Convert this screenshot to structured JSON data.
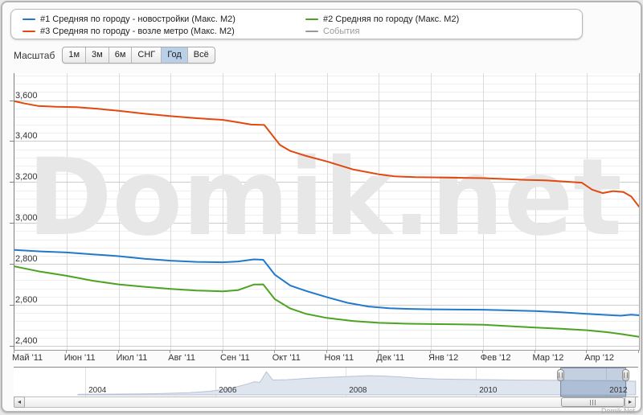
{
  "watermark": "Domik.net",
  "footer": {
    "brand": "Domik.Net"
  },
  "colors": {
    "series1": "#2079ca",
    "series2": "#4da321",
    "series3": "#e1490f",
    "events": "#999999",
    "selected_button_bg": "#b9d0e8",
    "grid_minor": "#efefef",
    "grid_major": "#cdcdcd",
    "grid_vertical": "#dbdbdb",
    "watermark_color": "#e7e7e7",
    "nav_area_fill": "#dfe5ef",
    "nav_area_line": "#b7c2d6",
    "nav_selection_fill": "rgba(77,112,160,0.33)",
    "nav_selection_border": "rgba(60,92,135,0.65)"
  },
  "legend": {
    "items": [
      {
        "id": "s1",
        "label": "#1 Средняя по городу - новостройки (Макс. М2)",
        "color": "#2079ca",
        "muted": false
      },
      {
        "id": "s2",
        "label": "#2 Средняя по городу (Макс. М2)",
        "color": "#4da321",
        "muted": false
      },
      {
        "id": "s3",
        "label": "#3 Средняя по городу - возле метро (Макс. М2)",
        "color": "#e1490f",
        "muted": false
      },
      {
        "id": "events",
        "label": "События",
        "color": "#999999",
        "muted": true
      }
    ]
  },
  "scale_toolbar": {
    "label": "Масштаб",
    "buttons": [
      {
        "label": "1м",
        "selected": false
      },
      {
        "label": "3м",
        "selected": false
      },
      {
        "label": "6м",
        "selected": false
      },
      {
        "label": "СНГ",
        "selected": false
      },
      {
        "label": "Год",
        "selected": true
      },
      {
        "label": "Всё",
        "selected": false
      }
    ]
  },
  "chart_data": {
    "type": "line",
    "title": "",
    "xlabel": "",
    "ylabel": "",
    "x_axis": {
      "unit": "month",
      "labels": [
        "Май '11",
        "Июн '11",
        "Июл '11",
        "Авг '11",
        "Сен '11",
        "Окт '11",
        "Ноя '11",
        "Дек '11",
        "Янв '12",
        "Фев '12",
        "Мар '12",
        "Апр '12"
      ]
    },
    "y_axis": {
      "min": 2380,
      "max": 3732,
      "minor_step": 40,
      "major_step": 200,
      "ticks": [
        {
          "value": 2400,
          "label": "2,400"
        },
        {
          "value": 2600,
          "label": "2,600"
        },
        {
          "value": 2800,
          "label": "2,800"
        },
        {
          "value": 3000,
          "label": "3,000"
        },
        {
          "value": 3200,
          "label": "3,200"
        },
        {
          "value": 3400,
          "label": "3,400"
        },
        {
          "value": 3600,
          "label": "3,600"
        }
      ]
    },
    "series": [
      {
        "name": "#1 Средняя по городу - новостройки (Макс. М2)",
        "color": "#2079ca",
        "points": [
          [
            0,
            2868
          ],
          [
            0.5,
            2861
          ],
          [
            1,
            2856
          ],
          [
            1.5,
            2847
          ],
          [
            2,
            2838
          ],
          [
            2.5,
            2825
          ],
          [
            3,
            2816
          ],
          [
            3.5,
            2810
          ],
          [
            4,
            2808
          ],
          [
            4.3,
            2812
          ],
          [
            4.6,
            2822
          ],
          [
            4.78,
            2820
          ],
          [
            5,
            2748
          ],
          [
            5.3,
            2694
          ],
          [
            5.6,
            2668
          ],
          [
            6,
            2638
          ],
          [
            6.4,
            2610
          ],
          [
            6.8,
            2592
          ],
          [
            7.2,
            2583
          ],
          [
            7.6,
            2580
          ],
          [
            8,
            2578
          ],
          [
            8.5,
            2577
          ],
          [
            9,
            2576
          ],
          [
            9.5,
            2573
          ],
          [
            10,
            2570
          ],
          [
            10.5,
            2564
          ],
          [
            11,
            2556
          ],
          [
            11.35,
            2551
          ],
          [
            11.65,
            2547
          ],
          [
            11.85,
            2552
          ],
          [
            12,
            2549
          ]
        ]
      },
      {
        "name": "#2 Средняя по городу (Макс. М2)",
        "color": "#4da321",
        "points": [
          [
            0,
            2788
          ],
          [
            0.5,
            2762
          ],
          [
            1,
            2742
          ],
          [
            1.5,
            2718
          ],
          [
            2,
            2700
          ],
          [
            2.5,
            2688
          ],
          [
            3,
            2678
          ],
          [
            3.5,
            2670
          ],
          [
            4,
            2666
          ],
          [
            4.3,
            2672
          ],
          [
            4.6,
            2699
          ],
          [
            4.78,
            2700
          ],
          [
            5,
            2628
          ],
          [
            5.3,
            2582
          ],
          [
            5.6,
            2556
          ],
          [
            6,
            2536
          ],
          [
            6.5,
            2521
          ],
          [
            7,
            2512
          ],
          [
            7.5,
            2508
          ],
          [
            8,
            2506
          ],
          [
            8.5,
            2505
          ],
          [
            9,
            2503
          ],
          [
            9.5,
            2496
          ],
          [
            10,
            2489
          ],
          [
            10.5,
            2483
          ],
          [
            11,
            2476
          ],
          [
            11.4,
            2466
          ],
          [
            11.7,
            2456
          ],
          [
            12,
            2444
          ]
        ]
      },
      {
        "name": "#3 Средняя по городу - возле метро (Макс. М2)",
        "color": "#e1490f",
        "points": [
          [
            0,
            3595
          ],
          [
            0.2,
            3584
          ],
          [
            0.45,
            3572
          ],
          [
            0.8,
            3568
          ],
          [
            1.2,
            3566
          ],
          [
            1.6,
            3558
          ],
          [
            2,
            3548
          ],
          [
            2.5,
            3534
          ],
          [
            3,
            3522
          ],
          [
            3.5,
            3512
          ],
          [
            4,
            3504
          ],
          [
            4.3,
            3492
          ],
          [
            4.55,
            3481
          ],
          [
            4.8,
            3479
          ],
          [
            4.95,
            3430
          ],
          [
            5.1,
            3382
          ],
          [
            5.3,
            3352
          ],
          [
            5.6,
            3328
          ],
          [
            6,
            3301
          ],
          [
            6.5,
            3262
          ],
          [
            7,
            3238
          ],
          [
            7.3,
            3228
          ],
          [
            7.7,
            3224
          ],
          [
            8,
            3223
          ],
          [
            8.5,
            3221
          ],
          [
            9,
            3219
          ],
          [
            9.4,
            3215
          ],
          [
            9.8,
            3211
          ],
          [
            10.2,
            3208
          ],
          [
            10.6,
            3202
          ],
          [
            10.9,
            3197
          ],
          [
            11.1,
            3163
          ],
          [
            11.3,
            3146
          ],
          [
            11.5,
            3156
          ],
          [
            11.7,
            3151
          ],
          [
            11.85,
            3130
          ],
          [
            12,
            3080
          ]
        ]
      },
      {
        "name": "События",
        "color": "#999999",
        "points": []
      }
    ]
  },
  "navigator": {
    "year_range": [
      2002.9,
      2012.49
    ],
    "selection": [
      2011.3,
      2012.3
    ],
    "value_max": 3600,
    "years": [
      {
        "label": "2004",
        "year": 2004
      },
      {
        "label": "2006",
        "year": 2006
      },
      {
        "label": "2008",
        "year": 2008
      },
      {
        "label": "2010",
        "year": 2010
      },
      {
        "label": "2012",
        "year": 2012
      }
    ],
    "area": [
      [
        2003.88,
        0
      ],
      [
        2003.9,
        80
      ],
      [
        2004.3,
        110
      ],
      [
        2004.7,
        130
      ],
      [
        2005.0,
        160
      ],
      [
        2005.3,
        230
      ],
      [
        2005.6,
        330
      ],
      [
        2005.9,
        520
      ],
      [
        2006.1,
        750
      ],
      [
        2006.3,
        1100
      ],
      [
        2006.5,
        1600
      ],
      [
        2006.6,
        1900
      ],
      [
        2006.68,
        1800
      ],
      [
        2006.78,
        3350
      ],
      [
        2006.88,
        2150
      ],
      [
        2007.1,
        2200
      ],
      [
        2007.4,
        2380
      ],
      [
        2007.7,
        2520
      ],
      [
        2008.0,
        2640
      ],
      [
        2008.35,
        2780
      ],
      [
        2008.6,
        2720
      ],
      [
        2008.85,
        2580
      ],
      [
        2009.1,
        2420
      ],
      [
        2009.4,
        2300
      ],
      [
        2009.8,
        2240
      ],
      [
        2010.2,
        2190
      ],
      [
        2010.6,
        2140
      ],
      [
        2011.0,
        2110
      ],
      [
        2011.4,
        2090
      ],
      [
        2011.8,
        2070
      ],
      [
        2012.1,
        2060
      ],
      [
        2012.35,
        1990
      ],
      [
        2012.45,
        1970
      ]
    ]
  }
}
